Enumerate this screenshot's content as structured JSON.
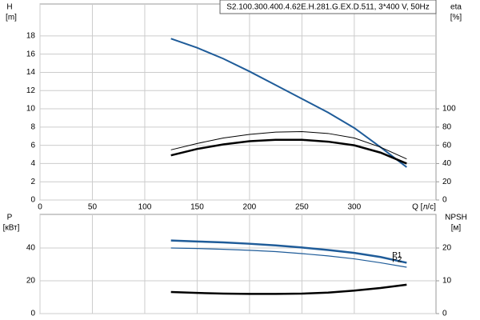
{
  "chart_data": [
    {
      "type": "line",
      "title": "S2.100.300.400.4.62E.H.281.G.EX.D.511, 3*400 V, 50Hz",
      "xlabel": "Q [л/с]",
      "ylabel": "H",
      "yunit": "[m]",
      "y2label": "eta",
      "y2unit": "[%]",
      "xlim": [
        0,
        378
      ],
      "xticks": [
        0,
        50,
        100,
        150,
        200,
        250,
        300
      ],
      "ylim": [
        0,
        21.5
      ],
      "yticks": [
        0,
        2,
        4,
        6,
        8,
        10,
        12,
        14,
        16,
        18
      ],
      "y2lim": [
        0,
        215
      ],
      "y2ticks": [
        0,
        20,
        40,
        60,
        80,
        100
      ],
      "grid": true,
      "x": [
        125,
        150,
        175,
        200,
        225,
        250,
        275,
        300,
        325,
        350
      ],
      "series": [
        {
          "color": "#1f5c99",
          "linewidth": 2,
          "values": [
            17.7,
            16.7,
            15.5,
            14.1,
            12.6,
            11.1,
            9.6,
            7.9,
            5.8,
            3.6
          ]
        },
        {
          "color": "#000000",
          "linewidth": 1,
          "axis": "y2",
          "values": [
            55,
            62,
            68,
            72,
            74.5,
            75,
            73,
            68,
            58,
            45
          ]
        },
        {
          "color": "#000000",
          "linewidth": 2.5,
          "axis": "y2",
          "values": [
            49,
            56,
            61,
            64.5,
            66,
            66,
            64,
            60,
            52,
            40
          ]
        }
      ]
    },
    {
      "type": "line",
      "ylabel": "P",
      "yunit": "[кВт]",
      "y2label": "NPSH",
      "y2unit": "[м]",
      "xlim": [
        0,
        378
      ],
      "ylim": [
        0,
        60.5
      ],
      "yticks": [
        0,
        20,
        40
      ],
      "y2lim": [
        0,
        30.25
      ],
      "y2ticks": [
        0,
        10,
        20
      ],
      "grid": true,
      "x": [
        125,
        150,
        175,
        200,
        225,
        250,
        275,
        300,
        325,
        350
      ],
      "series": [
        {
          "name": "P1",
          "color": "#1f5c99",
          "linewidth": 2.5,
          "values": [
            44.6,
            44.0,
            43.4,
            42.6,
            41.6,
            40.3,
            38.8,
            37,
            34.5,
            31
          ]
        },
        {
          "name": "P2",
          "color": "#1f5c99",
          "linewidth": 1.2,
          "values": [
            40,
            39.7,
            39.2,
            38.6,
            37.8,
            36.6,
            35.2,
            33.4,
            31,
            28.3
          ]
        },
        {
          "color": "#000000",
          "linewidth": 2.5,
          "axis": "y2",
          "values": [
            6.6,
            6.3,
            6.1,
            6.0,
            6.0,
            6.1,
            6.4,
            7.0,
            7.8,
            8.8
          ]
        }
      ]
    }
  ]
}
